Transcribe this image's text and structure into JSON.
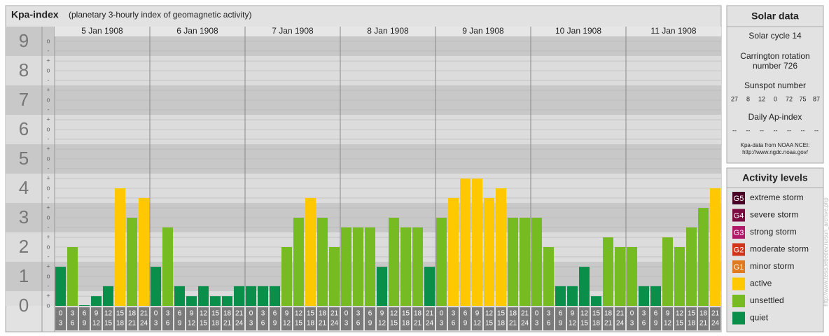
{
  "chart_data": {
    "type": "bar",
    "title": "Kpa-index",
    "subtitle": "(planetary 3-hourly index of geomagnetic activity)",
    "days": [
      {
        "label": "5 Jan 1908"
      },
      {
        "label": "6 Jan 1908"
      },
      {
        "label": "7 Jan 1908"
      },
      {
        "label": "8 Jan 1908"
      },
      {
        "label": "9 Jan 1908"
      },
      {
        "label": "10 Jan 1908"
      },
      {
        "label": "11 Jan 1908"
      }
    ],
    "hours": [
      [
        "0",
        "3"
      ],
      [
        "3",
        "6"
      ],
      [
        "6",
        "9"
      ],
      [
        "9",
        "12"
      ],
      [
        "12",
        "15"
      ],
      [
        "15",
        "18"
      ],
      [
        "18",
        "21"
      ],
      [
        "21",
        "24"
      ]
    ],
    "values": [
      1.33,
      2,
      0,
      0.33,
      0.67,
      4,
      3,
      3.67,
      1.33,
      2.67,
      0.67,
      0.33,
      0.67,
      0.33,
      0.33,
      0.67,
      0.67,
      0.67,
      0.67,
      2,
      3,
      3.67,
      3,
      2,
      2.67,
      2.67,
      2.67,
      1.33,
      3,
      2.67,
      2.67,
      1.33,
      3,
      3.67,
      4.33,
      4.33,
      3.67,
      4,
      3,
      3,
      3,
      2,
      0.67,
      0.67,
      1.33,
      0.33,
      2.33,
      2,
      2,
      0.67,
      0.67,
      2.33,
      2,
      2.67,
      3.33,
      4
    ],
    "colors": [
      "#0a8f4a",
      "#77bb22",
      "#0a8f4a",
      "#0a8f4a",
      "#0a8f4a",
      "#ffc800",
      "#77bb22",
      "#ffc800",
      "#0a8f4a",
      "#77bb22",
      "#0a8f4a",
      "#0a8f4a",
      "#0a8f4a",
      "#0a8f4a",
      "#0a8f4a",
      "#0a8f4a",
      "#0a8f4a",
      "#0a8f4a",
      "#0a8f4a",
      "#77bb22",
      "#77bb22",
      "#ffc800",
      "#77bb22",
      "#77bb22",
      "#77bb22",
      "#77bb22",
      "#77bb22",
      "#0a8f4a",
      "#77bb22",
      "#77bb22",
      "#77bb22",
      "#0a8f4a",
      "#77bb22",
      "#ffc800",
      "#ffc800",
      "#ffc800",
      "#ffc800",
      "#ffc800",
      "#77bb22",
      "#77bb22",
      "#77bb22",
      "#77bb22",
      "#0a8f4a",
      "#0a8f4a",
      "#0a8f4a",
      "#0a8f4a",
      "#77bb22",
      "#77bb22",
      "#77bb22",
      "#0a8f4a",
      "#0a8f4a",
      "#77bb22",
      "#77bb22",
      "#77bb22",
      "#77bb22",
      "#ffc800"
    ],
    "ylim": [
      0,
      9.5
    ],
    "yticks": [
      0,
      1,
      2,
      3,
      4,
      5,
      6,
      7,
      8,
      9
    ],
    "yminor_ticks": [
      {
        "value": 0,
        "label": "o"
      },
      {
        "value": 0.333,
        "label": "+"
      },
      {
        "value": 0.667,
        "label": "-"
      },
      {
        "value": 1,
        "label": "o"
      },
      {
        "value": 1.333,
        "label": "+"
      },
      {
        "value": 1.667,
        "label": "-"
      },
      {
        "value": 2,
        "label": "o"
      },
      {
        "value": 2.333,
        "label": "+"
      },
      {
        "value": 2.667,
        "label": "-"
      },
      {
        "value": 3,
        "label": "o"
      },
      {
        "value": 3.333,
        "label": "+"
      },
      {
        "value": 3.667,
        "label": "-"
      },
      {
        "value": 4,
        "label": "o"
      },
      {
        "value": 4.333,
        "label": "+"
      },
      {
        "value": 4.667,
        "label": "-"
      },
      {
        "value": 5,
        "label": "o"
      },
      {
        "value": 5.333,
        "label": "+"
      },
      {
        "value": 5.667,
        "label": "-"
      },
      {
        "value": 6,
        "label": "o"
      },
      {
        "value": 6.333,
        "label": "+"
      },
      {
        "value": 6.667,
        "label": "-"
      },
      {
        "value": 7,
        "label": "o"
      },
      {
        "value": 7.333,
        "label": "+"
      },
      {
        "value": 7.667,
        "label": "-"
      },
      {
        "value": 8,
        "label": "o"
      },
      {
        "value": 8.333,
        "label": "+"
      },
      {
        "value": 8.667,
        "label": "-"
      },
      {
        "value": 9,
        "label": "o"
      }
    ],
    "grid": true
  },
  "solar_data": {
    "title": "Solar data",
    "cycle": "Solar cycle 14",
    "carrington": [
      "Carrington rotation",
      "number 726"
    ],
    "sunspot_title": "Sunspot number",
    "sunspot_numbers": [
      27,
      8,
      12,
      0,
      72,
      75,
      87
    ],
    "ap_title": "Daily Ap-index",
    "ap_values": [
      "--",
      "--",
      "--",
      "--",
      "--",
      "--",
      "--"
    ],
    "source": [
      "Kpa-data from NOAA NCEI:",
      "http://www.ngdc.noaa.gov/"
    ]
  },
  "activity_levels": {
    "title": "Activity levels",
    "levels": [
      {
        "badge": "G5",
        "name": "extreme storm",
        "color": "#4a0026"
      },
      {
        "badge": "G4",
        "name": "severe storm",
        "color": "#7a0a40"
      },
      {
        "badge": "G3",
        "name": "strong storm",
        "color": "#b0186a"
      },
      {
        "badge": "G2",
        "name": "moderate storm",
        "color": "#d0351a"
      },
      {
        "badge": "G1",
        "name": "minor storm",
        "color": "#e07a20"
      },
      {
        "name": "active",
        "color": "#ffc800"
      },
      {
        "name": "unsettled",
        "color": "#77bb22"
      },
      {
        "name": "quiet",
        "color": "#0a8f4a"
      }
    ]
  },
  "watermark": "http://www.tesis.lebedev.ru/sun_archive.php"
}
